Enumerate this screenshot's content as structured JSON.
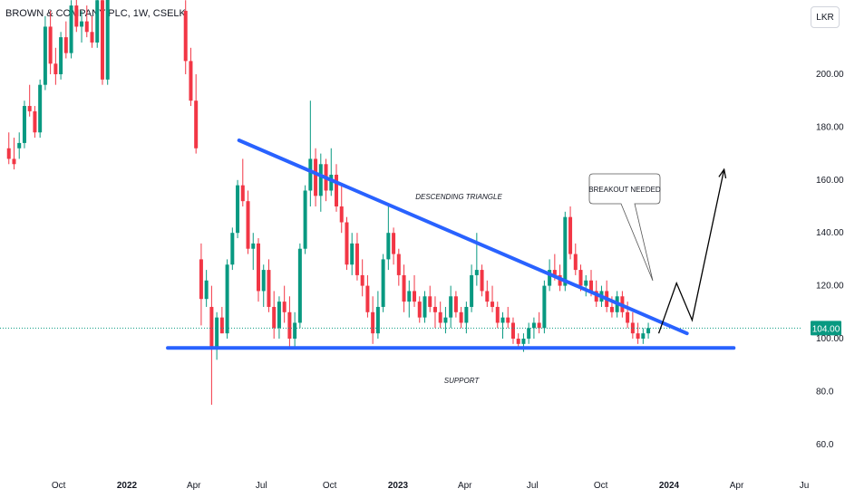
{
  "header": {
    "title": "BROWN & COMPANY PLC, 1W, CSELK"
  },
  "currency": "LKR",
  "colors": {
    "up": "#089981",
    "down": "#f23645",
    "trendline": "#2962ff",
    "last_price": "#089981",
    "grid": "#f0f3fa"
  },
  "chart_data": {
    "type": "candlestick",
    "title": "BROWN & COMPANY PLC, 1W, CSELK",
    "y_ticks": [
      "200.00",
      "180.00",
      "160.00",
      "140.00",
      "120.00",
      "100.00",
      "80.0",
      "60.0"
    ],
    "y_tick_values": [
      200,
      180,
      160,
      140,
      120,
      100,
      80,
      60
    ],
    "x_ticks": [
      {
        "label": "Oct",
        "date": "2021-10",
        "bold": false
      },
      {
        "label": "2022",
        "date": "2022-01",
        "bold": true
      },
      {
        "label": "Apr",
        "date": "2022-04",
        "bold": false
      },
      {
        "label": "Jul",
        "date": "2022-07",
        "bold": false
      },
      {
        "label": "Oct",
        "date": "2022-10",
        "bold": false
      },
      {
        "label": "2023",
        "date": "2023-01",
        "bold": true
      },
      {
        "label": "Apr",
        "date": "2023-04",
        "bold": false
      },
      {
        "label": "Jul",
        "date": "2023-07",
        "bold": false
      },
      {
        "label": "Oct",
        "date": "2023-10",
        "bold": false
      },
      {
        "label": "2024",
        "date": "2024-01",
        "bold": true
      },
      {
        "label": "Apr",
        "date": "2024-04",
        "bold": false
      },
      {
        "label": "Ju",
        "date": "2024-07",
        "bold": false
      }
    ],
    "last_price": "104.00",
    "last_price_value": 104,
    "annotations": {
      "triangle_label": "DESCENDING TRIANGLE",
      "support_label": "SUPPORT",
      "callout": "BREAKOUT NEEDED"
    },
    "trendlines": [
      {
        "name": "resistance",
        "from": {
          "date": "2022-06-01",
          "price": 175
        },
        "to": {
          "date": "2024-01-25",
          "price": 102
        }
      },
      {
        "name": "support",
        "from": {
          "date": "2022-02-25",
          "price": 96.5
        },
        "to": {
          "date": "2024-03-28",
          "price": 96.5
        }
      }
    ],
    "projection": [
      {
        "date": "2023-12-18",
        "price": 102
      },
      {
        "date": "2024-01-11",
        "price": 121
      },
      {
        "date": "2024-02-01",
        "price": 107
      },
      {
        "date": "2024-03-15",
        "price": 164
      }
    ],
    "candles": [
      [
        2021,
        "2021-07-26",
        172,
        178,
        166,
        168
      ],
      [
        2021,
        "2021-08-02",
        168,
        176,
        164,
        166
      ],
      [
        2021,
        "2021-08-09",
        172,
        178,
        168,
        174
      ],
      [
        2021,
        "2021-08-16",
        174,
        190,
        172,
        188
      ],
      [
        2021,
        "2021-08-23",
        188,
        196,
        184,
        186
      ],
      [
        2021,
        "2021-08-30",
        186,
        188,
        176,
        178
      ],
      [
        2021,
        "2021-09-06",
        178,
        198,
        176,
        196
      ],
      [
        2021,
        "2021-09-13",
        196,
        222,
        194,
        218
      ],
      [
        2021,
        "2021-09-20",
        218,
        224,
        200,
        204
      ],
      [
        2021,
        "2021-09-27",
        204,
        210,
        196,
        200
      ],
      [
        2021,
        "2021-10-04",
        200,
        216,
        198,
        214
      ],
      [
        2021,
        "2021-10-11",
        214,
        220,
        206,
        208
      ],
      [
        2021,
        "2021-10-18",
        208,
        228,
        206,
        226
      ],
      [
        2021,
        "2021-10-25",
        226,
        232,
        216,
        218
      ],
      [
        2021,
        "2021-11-01",
        218,
        224,
        212,
        220
      ],
      [
        2021,
        "2021-11-08",
        220,
        226,
        214,
        216
      ],
      [
        2021,
        "2021-11-15",
        216,
        222,
        210,
        212
      ],
      [
        2021,
        "2021-11-22",
        212,
        230,
        210,
        228
      ],
      [
        2021,
        "2021-11-29",
        228,
        234,
        196,
        198
      ],
      [
        2021,
        "2021-12-06",
        198,
        236,
        196,
        232
      ],
      [
        2022,
        "2022-03-21",
        224,
        228,
        200,
        205
      ],
      [
        2022,
        "2022-03-28",
        205,
        210,
        188,
        190
      ],
      [
        2022,
        "2022-04-04",
        190,
        200,
        170,
        172
      ],
      [
        2022,
        "2022-04-11",
        130,
        136,
        105,
        115
      ],
      [
        2022,
        "2022-04-18",
        115,
        126,
        112,
        122
      ],
      [
        2022,
        "2022-04-25",
        112,
        120,
        75,
        96
      ],
      [
        2022,
        "2022-05-02",
        96,
        110,
        92,
        108
      ],
      [
        2022,
        "2022-05-09",
        108,
        112,
        102,
        102
      ],
      [
        2022,
        "2022-05-16",
        102,
        130,
        100,
        128
      ],
      [
        2022,
        "2022-05-23",
        128,
        142,
        126,
        140
      ],
      [
        2022,
        "2022-05-30",
        140,
        160,
        138,
        158
      ],
      [
        2022,
        "2022-06-06",
        158,
        168,
        150,
        152
      ],
      [
        2022,
        "2022-06-13",
        152,
        156,
        132,
        134
      ],
      [
        2022,
        "2022-06-20",
        134,
        140,
        126,
        136
      ],
      [
        2022,
        "2022-06-27",
        136,
        138,
        114,
        118
      ],
      [
        2022,
        "2022-07-04",
        118,
        128,
        112,
        126
      ],
      [
        2022,
        "2022-07-11",
        126,
        130,
        110,
        112
      ],
      [
        2022,
        "2022-07-18",
        112,
        118,
        100,
        104
      ],
      [
        2022,
        "2022-07-25",
        104,
        116,
        100,
        114
      ],
      [
        2022,
        "2022-08-01",
        114,
        120,
        106,
        110
      ],
      [
        2022,
        "2022-08-08",
        110,
        116,
        96,
        100
      ],
      [
        2022,
        "2022-08-15",
        100,
        110,
        96,
        106
      ],
      [
        2022,
        "2022-08-22",
        106,
        136,
        104,
        134
      ],
      [
        2022,
        "2022-08-29",
        134,
        158,
        132,
        156
      ],
      [
        2022,
        "2022-09-05",
        156,
        190,
        150,
        168
      ],
      [
        2022,
        "2022-09-12",
        168,
        172,
        150,
        154
      ],
      [
        2022,
        "2022-09-19",
        154,
        170,
        148,
        166
      ],
      [
        2022,
        "2022-09-26",
        166,
        168,
        152,
        156
      ],
      [
        2022,
        "2022-10-03",
        156,
        172,
        154,
        162
      ],
      [
        2022,
        "2022-10-10",
        162,
        166,
        148,
        150
      ],
      [
        2022,
        "2022-10-17",
        150,
        158,
        140,
        144
      ],
      [
        2022,
        "2022-10-24",
        144,
        146,
        126,
        128
      ],
      [
        2022,
        "2022-10-31",
        128,
        140,
        124,
        136
      ],
      [
        2022,
        "2022-11-07",
        136,
        140,
        122,
        124
      ],
      [
        2022,
        "2022-11-14",
        124,
        130,
        116,
        120
      ],
      [
        2022,
        "2022-11-21",
        120,
        124,
        108,
        110
      ],
      [
        2022,
        "2022-11-28",
        110,
        116,
        98,
        102
      ],
      [
        2022,
        "2022-12-05",
        102,
        118,
        100,
        112
      ],
      [
        2022,
        "2022-12-12",
        112,
        132,
        110,
        130
      ],
      [
        2022,
        "2022-12-19",
        130,
        150,
        126,
        140
      ],
      [
        2022,
        "2022-12-26",
        140,
        142,
        128,
        132
      ],
      [
        2023,
        "2023-01-02",
        132,
        134,
        120,
        124
      ],
      [
        2023,
        "2023-01-09",
        124,
        128,
        110,
        114
      ],
      [
        2023,
        "2023-01-16",
        114,
        122,
        108,
        118
      ],
      [
        2023,
        "2023-01-23",
        118,
        124,
        112,
        114
      ],
      [
        2023,
        "2023-01-30",
        114,
        116,
        106,
        108
      ],
      [
        2023,
        "2023-02-06",
        108,
        118,
        106,
        116
      ],
      [
        2023,
        "2023-02-13",
        116,
        120,
        110,
        112
      ],
      [
        2023,
        "2023-02-20",
        112,
        116,
        104,
        110
      ],
      [
        2023,
        "2023-02-27",
        110,
        114,
        104,
        106
      ],
      [
        2023,
        "2023-03-06",
        106,
        112,
        102,
        108
      ],
      [
        2023,
        "2023-03-13",
        108,
        120,
        104,
        116
      ],
      [
        2023,
        "2023-03-20",
        116,
        118,
        108,
        110
      ],
      [
        2023,
        "2023-03-27",
        110,
        112,
        104,
        106
      ],
      [
        2023,
        "2023-04-03",
        106,
        114,
        102,
        112
      ],
      [
        2023,
        "2023-04-10",
        112,
        128,
        110,
        124
      ],
      [
        2023,
        "2023-04-17",
        124,
        140,
        120,
        126
      ],
      [
        2023,
        "2023-04-24",
        126,
        128,
        116,
        118
      ],
      [
        2023,
        "2023-05-01",
        118,
        122,
        112,
        114
      ],
      [
        2023,
        "2023-05-08",
        114,
        120,
        110,
        112
      ],
      [
        2023,
        "2023-05-15",
        112,
        114,
        104,
        106
      ],
      [
        2023,
        "2023-05-22",
        106,
        110,
        100,
        108
      ],
      [
        2023,
        "2023-05-29",
        108,
        112,
        104,
        106
      ],
      [
        2023,
        "2023-06-05",
        106,
        108,
        98,
        100
      ],
      [
        2023,
        "2023-06-12",
        100,
        102,
        96,
        98
      ],
      [
        2023,
        "2023-06-19",
        98,
        102,
        95,
        100
      ],
      [
        2023,
        "2023-06-26",
        100,
        106,
        98,
        104
      ],
      [
        2023,
        "2023-07-03",
        104,
        108,
        100,
        106
      ],
      [
        2023,
        "2023-07-10",
        106,
        110,
        102,
        104
      ],
      [
        2023,
        "2023-07-17",
        104,
        122,
        102,
        120
      ],
      [
        2023,
        "2023-07-24",
        120,
        130,
        118,
        126
      ],
      [
        2023,
        "2023-07-31",
        126,
        132,
        122,
        124
      ],
      [
        2023,
        "2023-08-07",
        124,
        128,
        118,
        120
      ],
      [
        2023,
        "2023-08-14",
        120,
        148,
        118,
        146
      ],
      [
        2023,
        "2023-08-21",
        146,
        150,
        130,
        132
      ],
      [
        2023,
        "2023-08-28",
        132,
        136,
        124,
        126
      ],
      [
        2023,
        "2023-09-04",
        126,
        128,
        118,
        120
      ],
      [
        2023,
        "2023-09-11",
        120,
        124,
        116,
        122
      ],
      [
        2023,
        "2023-09-18",
        122,
        126,
        116,
        118
      ],
      [
        2023,
        "2023-09-25",
        118,
        122,
        112,
        114
      ],
      [
        2023,
        "2023-10-02",
        114,
        120,
        112,
        118
      ],
      [
        2023,
        "2023-10-09",
        118,
        122,
        110,
        112
      ],
      [
        2023,
        "2023-10-16",
        112,
        116,
        108,
        110
      ],
      [
        2023,
        "2023-10-23",
        110,
        118,
        108,
        116
      ],
      [
        2023,
        "2023-10-30",
        116,
        118,
        108,
        110
      ],
      [
        2023,
        "2023-11-06",
        110,
        114,
        104,
        106
      ],
      [
        2023,
        "2023-11-13",
        106,
        110,
        100,
        102
      ],
      [
        2023,
        "2023-11-20",
        102,
        106,
        98,
        100
      ],
      [
        2023,
        "2023-11-27",
        100,
        104,
        98,
        102
      ],
      [
        2023,
        "2023-12-04",
        102,
        106,
        100,
        104
      ]
    ]
  }
}
